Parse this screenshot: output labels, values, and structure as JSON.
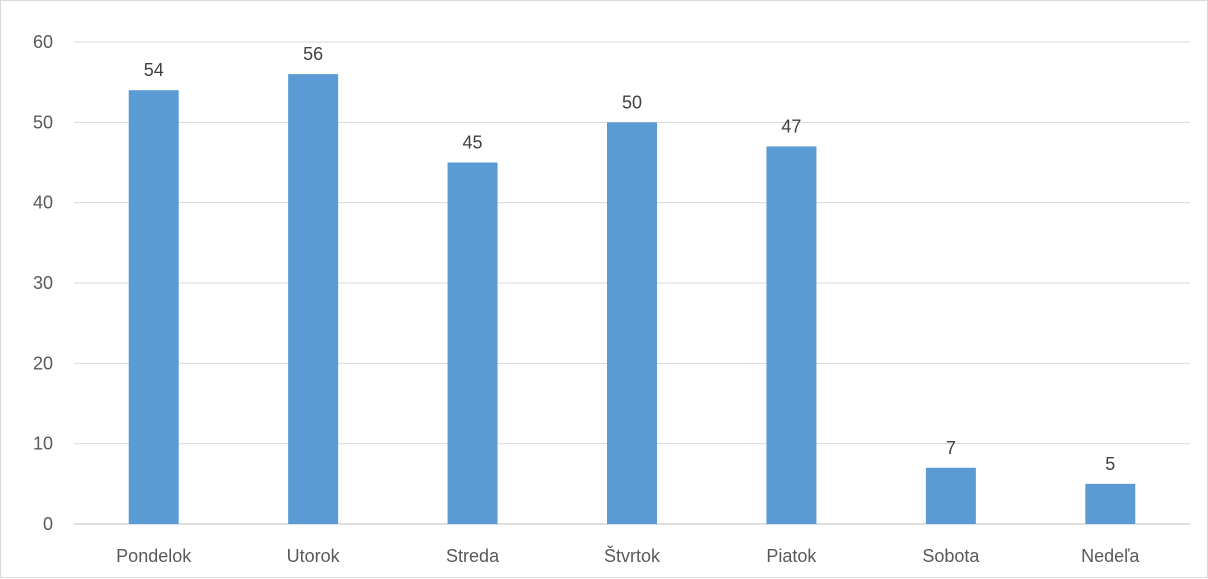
{
  "chart_data": {
    "type": "bar",
    "categories": [
      "Pondelok",
      "Utorok",
      "Streda",
      "Štvrtok",
      "Piatok",
      "Sobota",
      "Nedeľa"
    ],
    "values": [
      54,
      56,
      45,
      50,
      47,
      7,
      5
    ],
    "title": "",
    "xlabel": "",
    "ylabel": "",
    "ylim": [
      0,
      60
    ],
    "yticks": [
      0,
      10,
      20,
      30,
      40,
      50,
      60
    ],
    "grid": true,
    "legend": "none",
    "colors": {
      "bar": "#5b9bd5",
      "grid": "#d9d9d9",
      "axis": "#bfbfbf"
    }
  }
}
